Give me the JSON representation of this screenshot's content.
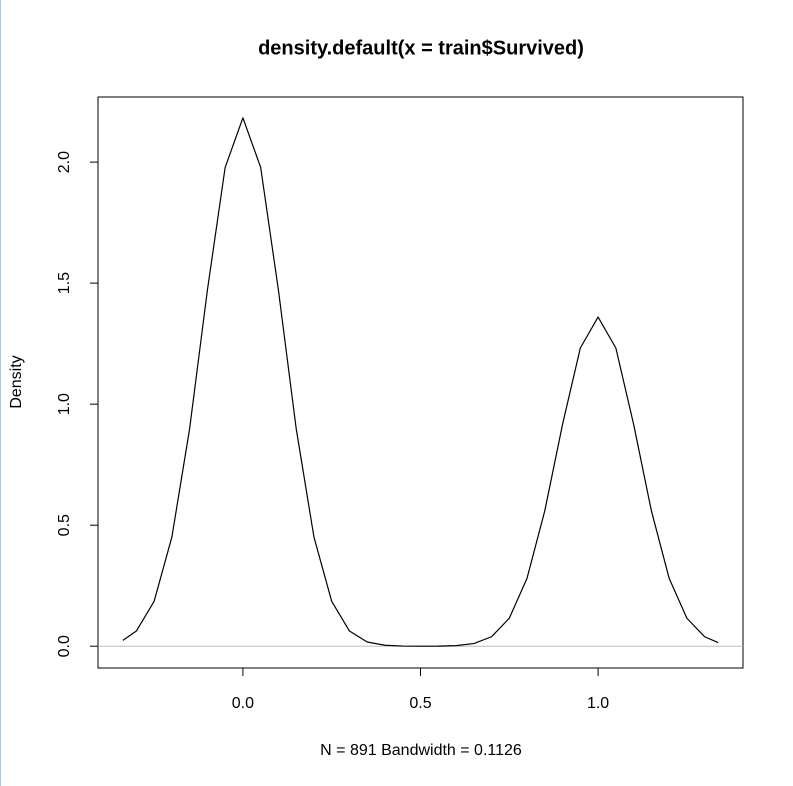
{
  "chart_data": {
    "type": "line",
    "title": "density.default(x = train$Survived)",
    "x_label": "N = 891   Bandwidth = 0.1126",
    "y_label": "Density",
    "x": [
      -0.338,
      -0.3,
      -0.25,
      -0.2,
      -0.15,
      -0.1,
      -0.05,
      0,
      0.05,
      0.1,
      0.15,
      0.2,
      0.25,
      0.3,
      0.35,
      0.4,
      0.45,
      0.5,
      0.55,
      0.6,
      0.65,
      0.7,
      0.75,
      0.8,
      0.85,
      0.9,
      0.95,
      1.0,
      1.05,
      1.1,
      1.15,
      1.2,
      1.25,
      1.3,
      1.338
    ],
    "values": [
      0.0241,
      0.0627,
      0.1856,
      0.451,
      0.899,
      1.471,
      1.978,
      2.183,
      1.978,
      1.471,
      0.899,
      0.451,
      0.1856,
      0.0627,
      0.0174,
      0.004,
      0.0007,
      0.0002,
      0.0005,
      0.0025,
      0.0109,
      0.0391,
      0.1156,
      0.281,
      0.56,
      0.917,
      1.232,
      1.36,
      1.232,
      0.917,
      0.56,
      0.281,
      0.1156,
      0.0391,
      0.015
    ],
    "color": "#000000",
    "xlim": [
      -0.408,
      1.408
    ],
    "ylim": [
      -0.09,
      2.269
    ],
    "xticks": [
      {
        "value": 0,
        "label": "0.0"
      },
      {
        "value": 0.5,
        "label": "0.5"
      },
      {
        "value": 1,
        "label": "1.0"
      }
    ],
    "yticks": [
      {
        "value": 0,
        "label": "0.0"
      },
      {
        "value": 0.5,
        "label": "0.5"
      },
      {
        "value": 1,
        "label": "1.0"
      },
      {
        "value": 1.5,
        "label": "1.5"
      },
      {
        "value": 2,
        "label": "2.0"
      }
    ]
  }
}
